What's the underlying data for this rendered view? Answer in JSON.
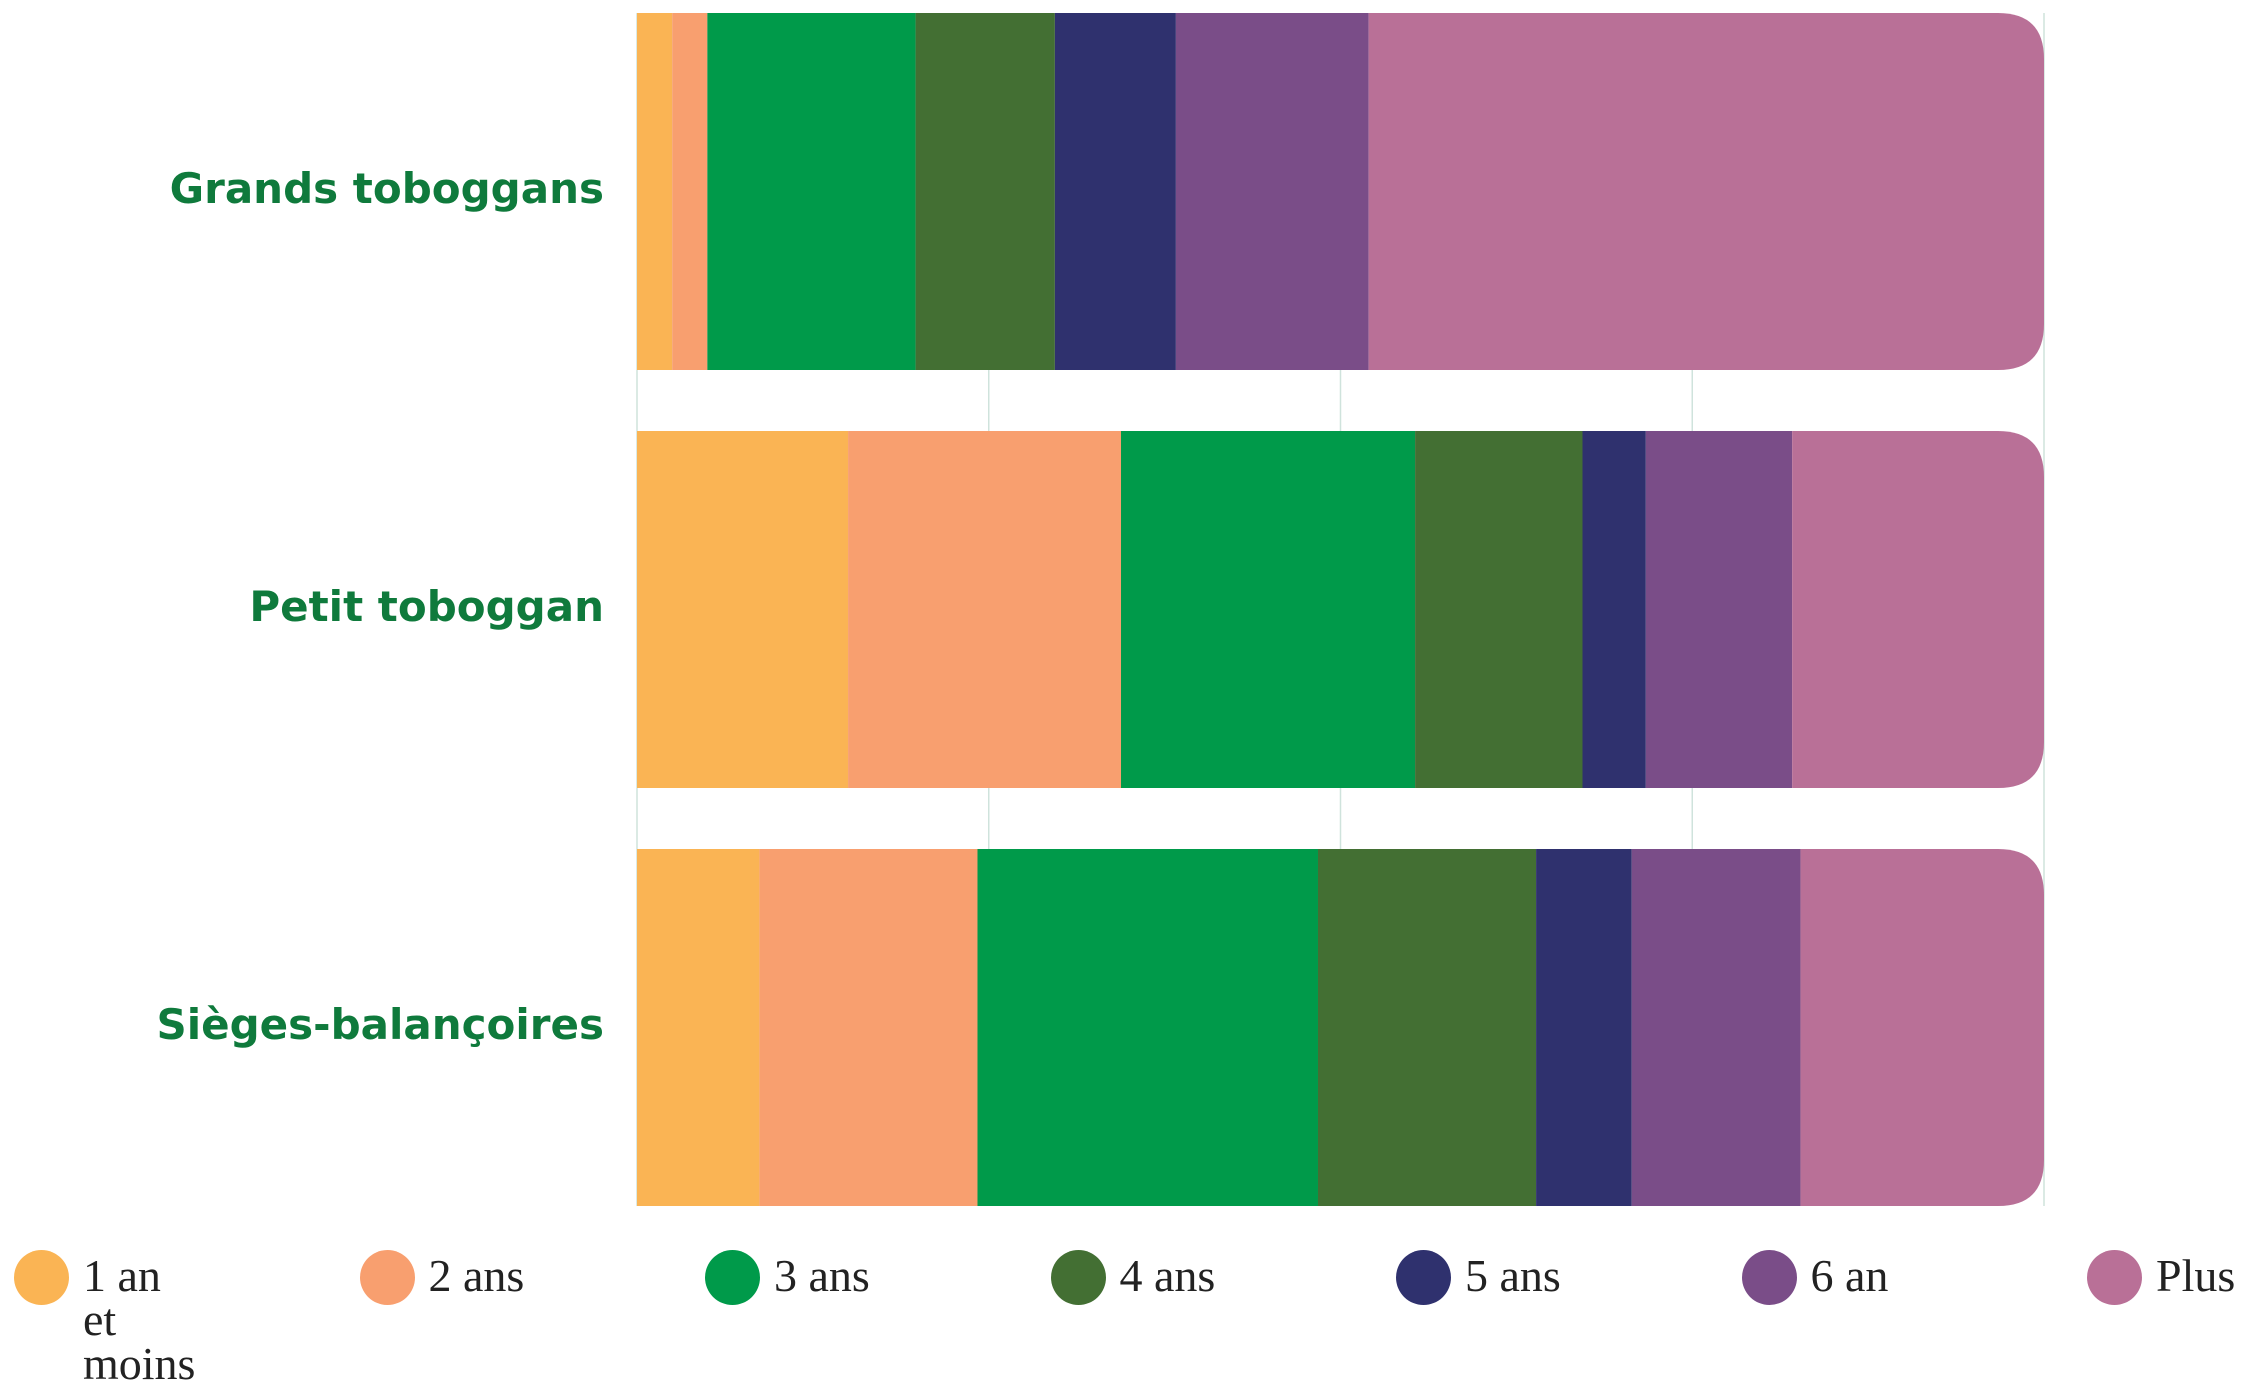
{
  "chart_data": {
    "type": "stacked-bar-horizontal",
    "categories": [
      "Grands toboggans",
      "Petit toboggan",
      "Sièges-balançoires"
    ],
    "series": [
      {
        "name": "1 an et moins",
        "color": "#fab454",
        "values": [
          2.5,
          15.0,
          8.7
        ]
      },
      {
        "name": "2 ans",
        "color": "#f89f6f",
        "values": [
          2.5,
          19.4,
          15.5
        ]
      },
      {
        "name": "3 ans",
        "color": "#009a4a",
        "values": [
          14.8,
          20.9,
          24.2
        ]
      },
      {
        "name": "4 ans",
        "color": "#436f33",
        "values": [
          9.9,
          11.9,
          15.5
        ]
      },
      {
        "name": "5 ans",
        "color": "#2f316e",
        "values": [
          8.6,
          4.5,
          6.8
        ]
      },
      {
        "name": "6 an",
        "color": "#7a4d88",
        "values": [
          13.7,
          10.4,
          12.0
        ]
      },
      {
        "name": "Plus",
        "color": "#b97097",
        "values": [
          48.0,
          17.9,
          17.3
        ]
      }
    ],
    "xlim": [
      0,
      100
    ],
    "xticks": [
      0,
      25,
      50,
      75,
      100
    ],
    "grid": true,
    "legend": "bottom"
  }
}
